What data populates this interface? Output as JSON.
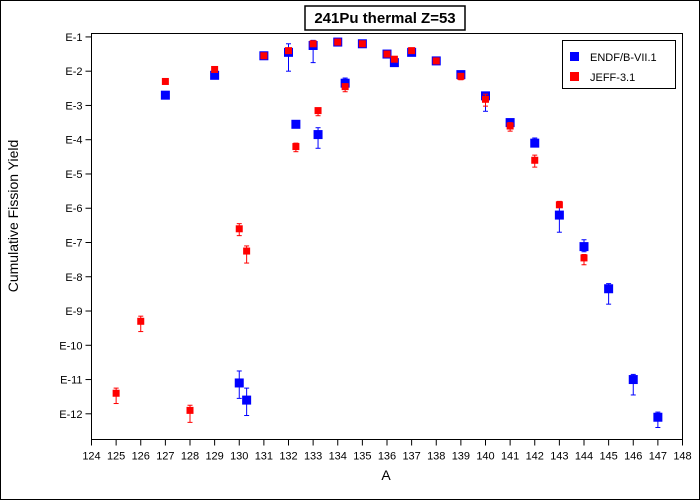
{
  "chart_data": {
    "type": "scatter",
    "title": "241Pu thermal Z=53",
    "xlabel": "A",
    "ylabel": "Cumulative Fission Yield",
    "xlim": [
      124,
      148
    ],
    "x_ticks": [
      124,
      125,
      126,
      127,
      128,
      129,
      130,
      131,
      132,
      133,
      134,
      135,
      136,
      137,
      138,
      139,
      140,
      141,
      142,
      143,
      144,
      145,
      146,
      147,
      148
    ],
    "y_scale": "log",
    "ylim": [
      -12.75,
      -0.9
    ],
    "y_ticks": [
      {
        "exp": -1,
        "label": "E-1"
      },
      {
        "exp": -2,
        "label": "E-2"
      },
      {
        "exp": -3,
        "label": "E-3"
      },
      {
        "exp": -4,
        "label": "E-4"
      },
      {
        "exp": -5,
        "label": "E-5"
      },
      {
        "exp": -6,
        "label": "E-6"
      },
      {
        "exp": -7,
        "label": "E-7"
      },
      {
        "exp": -8,
        "label": "E-8"
      },
      {
        "exp": -9,
        "label": "E-9"
      },
      {
        "exp": -10,
        "label": "E-10"
      },
      {
        "exp": -11,
        "label": "E-11"
      },
      {
        "exp": -12,
        "label": "E-12"
      }
    ],
    "grid": false,
    "legend_position": "top-right",
    "series": [
      {
        "name": "ENDF/B-VII.1",
        "color": "#0000ff",
        "marker": "square",
        "points": [
          {
            "x": 127,
            "log10y": -2.7,
            "err_lo": 0.05,
            "err_hi": 0.05
          },
          {
            "x": 129,
            "log10y": -2.12,
            "err_lo": 0.05,
            "err_hi": 0.05
          },
          {
            "x": 130,
            "log10y": -11.1,
            "err_lo": 0.45,
            "err_hi": 0.35
          },
          {
            "x": 130.3,
            "log10y": -11.6,
            "err_lo": 0.45,
            "err_hi": 0.35
          },
          {
            "x": 131,
            "log10y": -1.55,
            "err_lo": 0.05,
            "err_hi": 0.05
          },
          {
            "x": 132,
            "log10y": -1.45,
            "err_lo": 0.55,
            "err_hi": 0.25
          },
          {
            "x": 132.3,
            "log10y": -3.55,
            "err_lo": 0.05,
            "err_hi": 0.05
          },
          {
            "x": 133,
            "log10y": -1.25,
            "err_lo": 0.5,
            "err_hi": 0.15
          },
          {
            "x": 133.2,
            "log10y": -3.85,
            "err_lo": 0.4,
            "err_hi": 0.2
          },
          {
            "x": 134,
            "log10y": -1.15,
            "err_lo": 0.05,
            "err_hi": 0.05
          },
          {
            "x": 134.3,
            "log10y": -2.35,
            "err_lo": 0.05,
            "err_hi": 0.15
          },
          {
            "x": 135,
            "log10y": -1.2,
            "err_lo": 0.05,
            "err_hi": 0.05
          },
          {
            "x": 136,
            "log10y": -1.5,
            "err_lo": 0.05,
            "err_hi": 0.05
          },
          {
            "x": 136.3,
            "log10y": -1.75,
            "err_lo": 0.05,
            "err_hi": 0.05
          },
          {
            "x": 137,
            "log10y": -1.45,
            "err_lo": 0.05,
            "err_hi": 0.05
          },
          {
            "x": 138,
            "log10y": -1.7,
            "err_lo": 0.05,
            "err_hi": 0.05
          },
          {
            "x": 139,
            "log10y": -2.1,
            "err_lo": 0.1,
            "err_hi": 0.05
          },
          {
            "x": 140,
            "log10y": -2.72,
            "err_lo": 0.45,
            "err_hi": 0.1
          },
          {
            "x": 141,
            "log10y": -3.5,
            "err_lo": 0.15,
            "err_hi": 0.1
          },
          {
            "x": 142,
            "log10y": -4.1,
            "err_lo": 0.1,
            "err_hi": 0.15
          },
          {
            "x": 143,
            "log10y": -6.2,
            "err_lo": 0.5,
            "err_hi": 0.25
          },
          {
            "x": 144,
            "log10y": -7.12,
            "err_lo": 0.15,
            "err_hi": 0.2
          },
          {
            "x": 145,
            "log10y": -8.35,
            "err_lo": 0.45,
            "err_hi": 0.15
          },
          {
            "x": 146,
            "log10y": -11.0,
            "err_lo": 0.45,
            "err_hi": 0.15
          },
          {
            "x": 147,
            "log10y": -12.1,
            "err_lo": 0.3,
            "err_hi": 0.15
          }
        ]
      },
      {
        "name": "JEFF-3.1",
        "color": "#ff0000",
        "marker": "square",
        "points": [
          {
            "x": 125,
            "log10y": -11.4,
            "err_lo": 0.3,
            "err_hi": 0.15
          },
          {
            "x": 126,
            "log10y": -9.3,
            "err_lo": 0.3,
            "err_hi": 0.15
          },
          {
            "x": 127,
            "log10y": -2.3,
            "err_lo": 0.05,
            "err_hi": 0.05
          },
          {
            "x": 128,
            "log10y": -11.9,
            "err_lo": 0.35,
            "err_hi": 0.15
          },
          {
            "x": 129,
            "log10y": -1.95,
            "err_lo": 0.05,
            "err_hi": 0.05
          },
          {
            "x": 130,
            "log10y": -6.6,
            "err_lo": 0.2,
            "err_hi": 0.15
          },
          {
            "x": 130.3,
            "log10y": -7.25,
            "err_lo": 0.35,
            "err_hi": 0.15
          },
          {
            "x": 131,
            "log10y": -1.55,
            "err_lo": 0.05,
            "err_hi": 0.05
          },
          {
            "x": 132,
            "log10y": -1.4,
            "err_lo": 0.05,
            "err_hi": 0.05
          },
          {
            "x": 132.3,
            "log10y": -4.2,
            "err_lo": 0.15,
            "err_hi": 0.1
          },
          {
            "x": 133,
            "log10y": -1.2,
            "err_lo": 0.05,
            "err_hi": 0.05
          },
          {
            "x": 133.2,
            "log10y": -3.15,
            "err_lo": 0.15,
            "err_hi": 0.05
          },
          {
            "x": 134,
            "log10y": -1.15,
            "err_lo": 0.05,
            "err_hi": 0.05
          },
          {
            "x": 134.3,
            "log10y": -2.45,
            "err_lo": 0.15,
            "err_hi": 0.05
          },
          {
            "x": 135,
            "log10y": -1.2,
            "err_lo": 0.05,
            "err_hi": 0.05
          },
          {
            "x": 136,
            "log10y": -1.5,
            "err_lo": 0.05,
            "err_hi": 0.05
          },
          {
            "x": 136.3,
            "log10y": -1.65,
            "err_lo": 0.05,
            "err_hi": 0.05
          },
          {
            "x": 137,
            "log10y": -1.4,
            "err_lo": 0.05,
            "err_hi": 0.05
          },
          {
            "x": 138,
            "log10y": -1.7,
            "err_lo": 0.05,
            "err_hi": 0.05
          },
          {
            "x": 139,
            "log10y": -2.15,
            "err_lo": 0.1,
            "err_hi": 0.05
          },
          {
            "x": 140,
            "log10y": -2.82,
            "err_lo": 0.2,
            "err_hi": 0.15
          },
          {
            "x": 141,
            "log10y": -3.6,
            "err_lo": 0.15,
            "err_hi": 0.1
          },
          {
            "x": 142,
            "log10y": -4.6,
            "err_lo": 0.2,
            "err_hi": 0.15
          },
          {
            "x": 143,
            "log10y": -5.9,
            "err_lo": 0.05,
            "err_hi": 0.1
          },
          {
            "x": 144,
            "log10y": -7.45,
            "err_lo": 0.2,
            "err_hi": 0.1
          }
        ]
      }
    ]
  }
}
